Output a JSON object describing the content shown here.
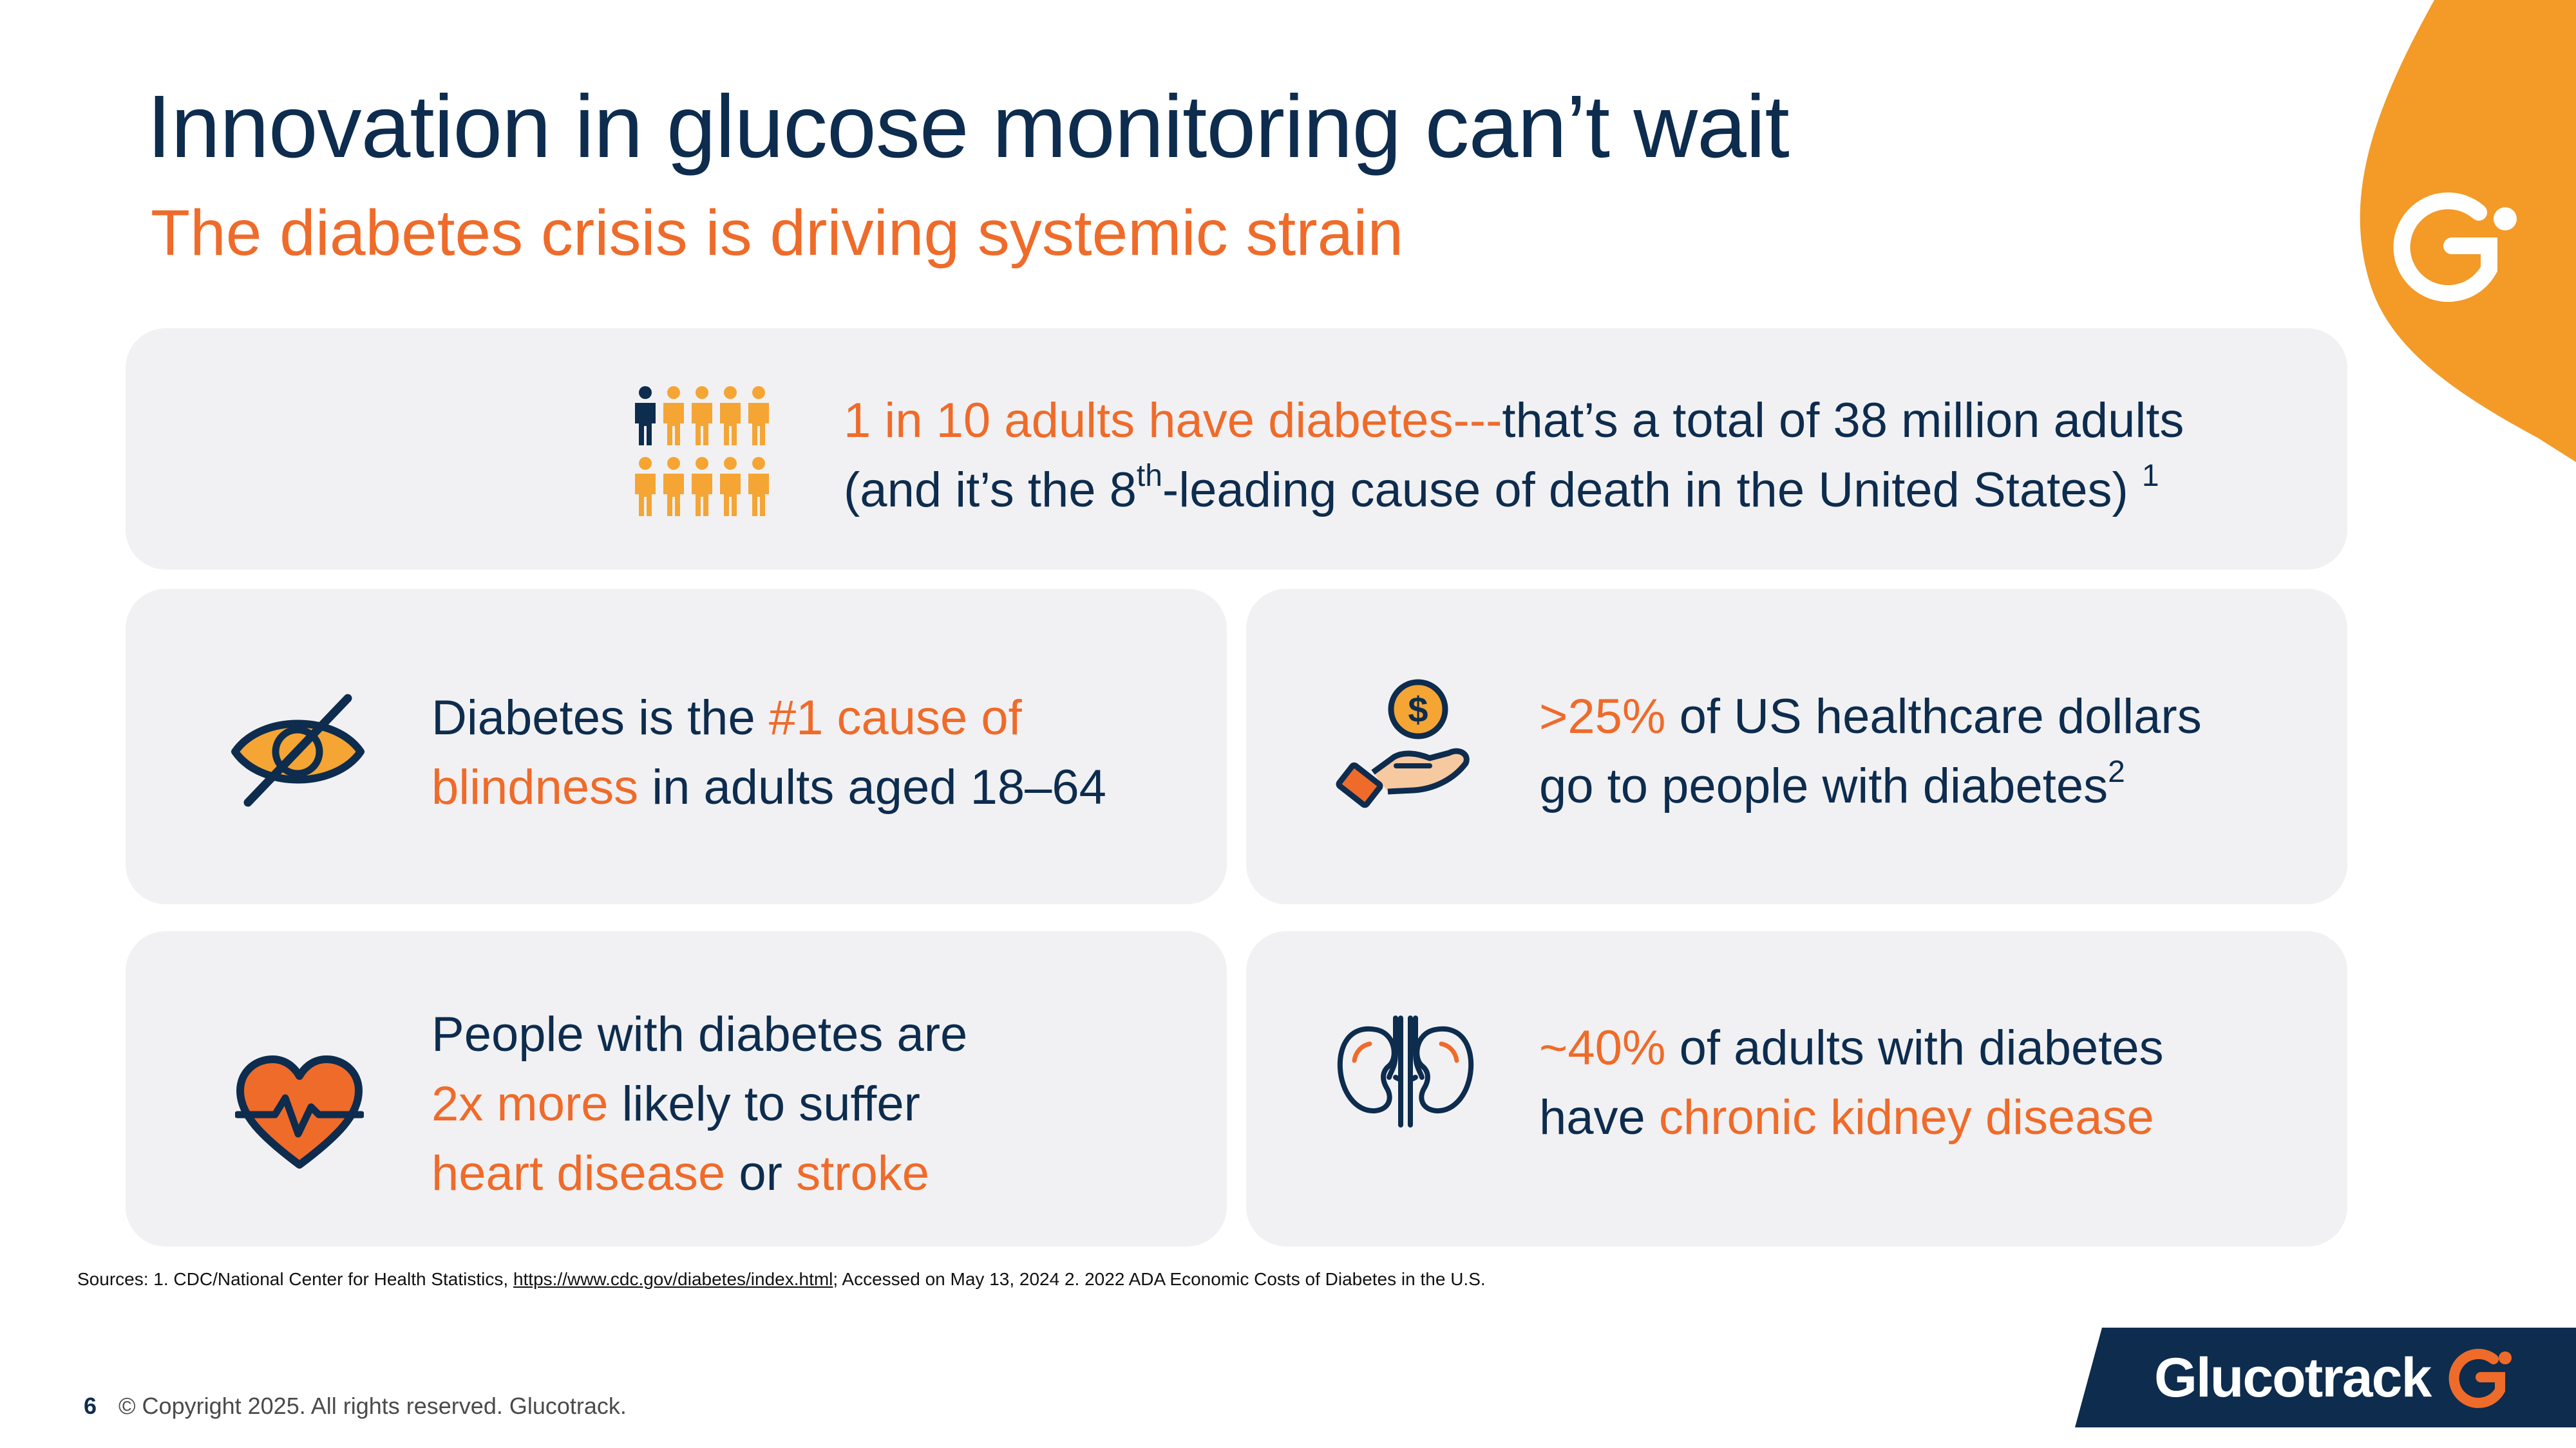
{
  "title": "Innovation in glucose monitoring can’t wait",
  "subtitle": "The diabetes crisis is driving systemic strain",
  "colors": {
    "navy": "#0d2c4e",
    "orange": "#ef6b2a",
    "gold": "#f5a534",
    "card_bg": "#f1f1f3",
    "brand_orange": "#f39a27"
  },
  "stat_adults": {
    "icon": "people-icon",
    "highlight": "1 in 10 adults have diabetes",
    "dashes": "---",
    "rest": "that’s a total of 38 million adults",
    "line2_pre": "(and it’s the 8",
    "line2_sup": "th",
    "line2_post": "-leading cause of death in the United States)",
    "footnote": "1"
  },
  "stat_blindness": {
    "icon": "eye-slash-icon",
    "pre": "Diabetes is the ",
    "highlight1": "#1 cause of",
    "highlight2": "blindness",
    "post": " in adults aged 18–64"
  },
  "stat_dollars": {
    "icon": "hand-coin-icon",
    "highlight": ">25%",
    "line1_rest": " of US healthcare dollars",
    "line2": "go to people with diabetes",
    "footnote": "2"
  },
  "stat_heart": {
    "icon": "heart-pulse-icon",
    "line1": "People with diabetes are",
    "highlight1": "2x more",
    "line2_rest": " likely to suffer",
    "highlight2": "heart disease",
    "or": " or ",
    "highlight3": "stroke"
  },
  "stat_kidney": {
    "icon": "kidneys-icon",
    "highlight1": "~40%",
    "line1_rest": " of adults with diabetes",
    "line2_pre": "have ",
    "highlight2": "chronic kidney disease"
  },
  "sources": {
    "prefix": "Sources: 1. CDC/National Center for Health Statistics, ",
    "link": "https://www.cdc.gov/diabetes/index.html",
    "suffix": "; Accessed on May 13, 2024  2. 2022 ADA Economic Costs of Diabetes in the U.S."
  },
  "footer": {
    "page_number": "6",
    "copyright": "© Copyright 2025. All rights reserved. Glucotrack."
  },
  "logo": {
    "wordmark": "Glucotrack",
    "icon": "glucotrack-g-icon"
  }
}
